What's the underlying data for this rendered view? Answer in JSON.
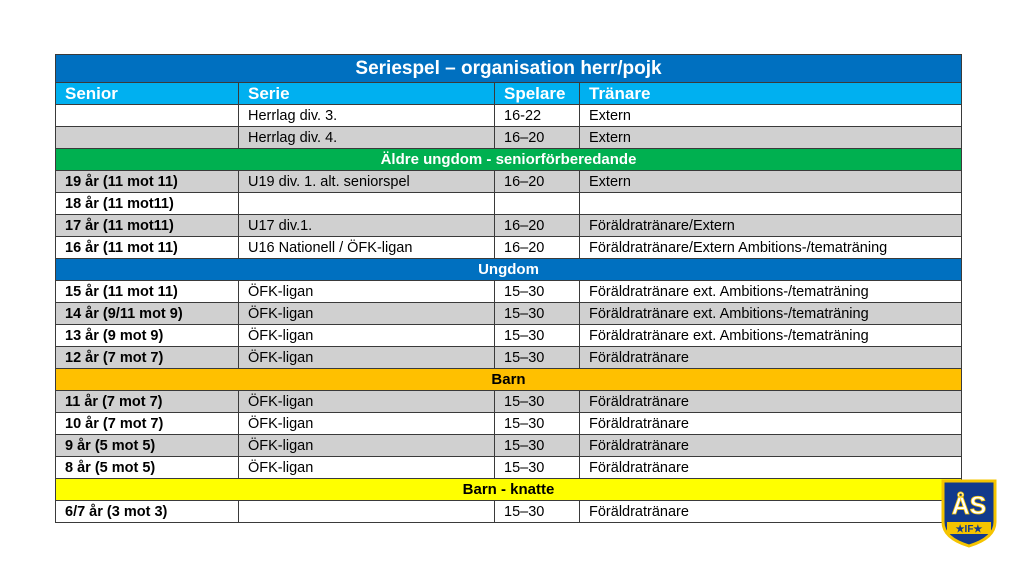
{
  "title": "Seriespel – organisation herr/pojk",
  "headers": [
    "Senior",
    "Serie",
    "Spelare",
    "Tränare"
  ],
  "blocks": [
    {
      "type": "row",
      "shade": "white",
      "cells": [
        "",
        "Herrlag div. 3.",
        "16-22",
        "Extern"
      ]
    },
    {
      "type": "row",
      "shade": "gray",
      "cells": [
        "",
        "Herrlag div. 4.",
        "16–20",
        "Extern"
      ]
    },
    {
      "type": "section",
      "label": "Äldre ungdom - seniorförberedande",
      "bg": "#00b050",
      "fg": "#ffffff"
    },
    {
      "type": "row",
      "shade": "gray",
      "cells": [
        "19 år (11 mot 11)",
        "U19 div. 1. alt. seniorspel",
        "16–20",
        "Extern"
      ]
    },
    {
      "type": "row",
      "shade": "white",
      "cells": [
        "18 år (11 mot11)",
        "",
        "",
        ""
      ]
    },
    {
      "type": "row",
      "shade": "gray",
      "cells": [
        "17 år (11 mot11)",
        "U17 div.1.",
        "16–20",
        "Föräldratränare/Extern"
      ]
    },
    {
      "type": "row",
      "shade": "white",
      "cells": [
        "16 år (11 mot 11)",
        "U16 Nationell / ÖFK-ligan",
        "16–20",
        "Föräldratränare/Extern Ambitions-/tematräning"
      ]
    },
    {
      "type": "section",
      "label": "Ungdom",
      "bg": "#0070c0",
      "fg": "#ffffff"
    },
    {
      "type": "row",
      "shade": "white",
      "cells": [
        "15 år (11 mot 11)",
        "ÖFK-ligan",
        "15–30",
        "Föräldratränare ext. Ambitions-/tematräning"
      ]
    },
    {
      "type": "row",
      "shade": "gray",
      "cells": [
        "14 år (9/11 mot 9)",
        "ÖFK-ligan",
        "15–30",
        "Föräldratränare ext. Ambitions-/tematräning"
      ]
    },
    {
      "type": "row",
      "shade": "white",
      "cells": [
        "13 år (9 mot 9)",
        "ÖFK-ligan",
        "15–30",
        "Föräldratränare ext. Ambitions-/tematräning"
      ]
    },
    {
      "type": "row",
      "shade": "gray",
      "cells": [
        "12 år (7 mot 7)",
        "ÖFK-ligan",
        "15–30",
        "Föräldratränare"
      ]
    },
    {
      "type": "section",
      "label": "Barn",
      "bg": "#ffc000",
      "fg": "#000000"
    },
    {
      "type": "row",
      "shade": "gray",
      "cells": [
        "11 år (7 mot 7)",
        "ÖFK-ligan",
        "15–30",
        "Föräldratränare"
      ]
    },
    {
      "type": "row",
      "shade": "white",
      "cells": [
        "10 år (7 mot 7)",
        "ÖFK-ligan",
        "15–30",
        "Föräldratränare"
      ]
    },
    {
      "type": "row",
      "shade": "gray",
      "cells": [
        "9 år (5 mot 5)",
        "ÖFK-ligan",
        "15–30",
        "Föräldratränare"
      ]
    },
    {
      "type": "row",
      "shade": "white",
      "cells": [
        "8 år (5 mot 5)",
        "ÖFK-ligan",
        "15–30",
        "Föräldratränare"
      ]
    },
    {
      "type": "section",
      "label": "Barn - knatte",
      "bg": "#ffff00",
      "fg": "#000000"
    },
    {
      "type": "row",
      "shade": "white",
      "cells": [
        "6/7 år (3 mot 3)",
        "",
        "15–30",
        "Föräldratränare"
      ]
    }
  ],
  "logo": {
    "text": "ÅS",
    "subtext": "★IF★",
    "icon": "club-crest-icon"
  },
  "colors": {
    "title_bg": "#0070c0",
    "header_bg": "#00b0f0",
    "gray_row": "#d0d0d0"
  }
}
